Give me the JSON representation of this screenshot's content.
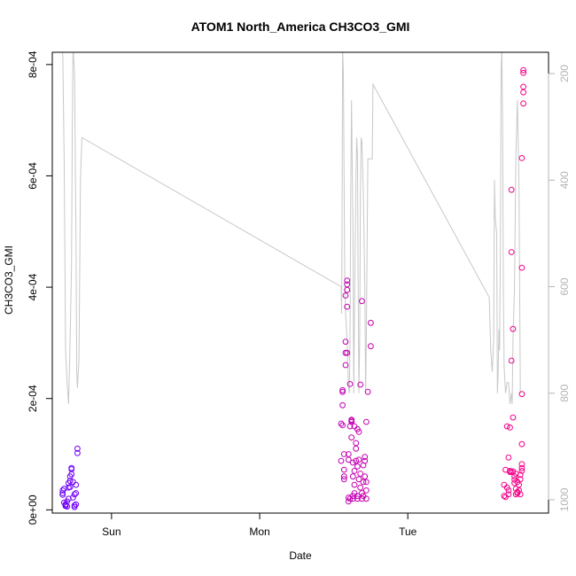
{
  "chart_data": {
    "type": "scatter",
    "title": "ATOM1 North_America CH3CO3_GMI",
    "xlabel": "Date",
    "ylabel": "CH3CO3_GMI",
    "x_unit": "days from Sun 00:00",
    "xlim": [
      -0.4,
      2.95
    ],
    "ylim": [
      -5.8e-06,
      0.000822
    ],
    "x_ticks": [
      {
        "value": 0,
        "label": "Sun"
      },
      {
        "value": 1,
        "label": "Mon"
      },
      {
        "value": 2,
        "label": "Tue"
      }
    ],
    "y_ticks": [
      {
        "value": 0,
        "label": "0e+00"
      },
      {
        "value": 0.0002,
        "label": "2e-04"
      },
      {
        "value": 0.0004,
        "label": "4e-04"
      },
      {
        "value": 0.0006,
        "label": "6e-04"
      },
      {
        "value": 0.0008,
        "label": "8e-04"
      }
    ],
    "y2_axis": {
      "label": "",
      "reversed": true,
      "lim": [
        1025,
        160
      ],
      "ticks": [
        {
          "value": 200,
          "label": "200"
        },
        {
          "value": 400,
          "label": "400"
        },
        {
          "value": 600,
          "label": "600"
        },
        {
          "value": 800,
          "label": "800"
        },
        {
          "value": 1000,
          "label": "1000"
        }
      ]
    },
    "grid": false,
    "legend": "none",
    "series": [
      {
        "kind": "points",
        "color_start": "#6a00ff",
        "color_end": "#ff0080",
        "points": [
          [
            -0.33,
            3e-05
          ],
          [
            -0.33,
            3.5e-05
          ],
          [
            -0.33,
            2.7e-05
          ],
          [
            -0.32,
            3.8e-05
          ],
          [
            -0.32,
            1.3e-05
          ],
          [
            -0.31,
            1e-05
          ],
          [
            -0.31,
            8e-06
          ],
          [
            -0.3,
            6e-06
          ],
          [
            -0.3,
            1.5e-05
          ],
          [
            -0.29,
            4.8e-05
          ],
          [
            -0.29,
            4e-05
          ],
          [
            -0.28,
            5.2e-05
          ],
          [
            -0.28,
            4.1e-05
          ],
          [
            -0.28,
            6e-05
          ],
          [
            -0.27,
            7.3e-05
          ],
          [
            -0.27,
            7.5e-05
          ],
          [
            -0.27,
            6.4e-05
          ],
          [
            -0.26,
            5e-05
          ],
          [
            -0.26,
            2.2e-05
          ],
          [
            -0.25,
            5e-06
          ],
          [
            -0.25,
            8e-06
          ],
          [
            -0.25,
            2.8e-05
          ],
          [
            -0.24,
            1e-05
          ],
          [
            -0.24,
            4.5e-05
          ],
          [
            -0.23,
            0.000102
          ],
          [
            -0.23,
            0.00011
          ],
          [
            -0.24,
            3e-05
          ],
          [
            -0.29,
            2e-05
          ],
          [
            -0.31,
            7e-06
          ],
          [
            1.55,
            8.8e-05
          ],
          [
            1.55,
            0.000155
          ],
          [
            1.56,
            0.000152
          ],
          [
            1.56,
            0.000188
          ],
          [
            1.56,
            0.000212
          ],
          [
            1.56,
            0.000215
          ],
          [
            1.57,
            7.2e-05
          ],
          [
            1.57,
            6e-05
          ],
          [
            1.57,
            5.5e-05
          ],
          [
            1.57,
            0.0001
          ],
          [
            1.58,
            0.00026
          ],
          [
            1.58,
            0.000302
          ],
          [
            1.58,
            0.000282
          ],
          [
            1.58,
            0.000385
          ],
          [
            1.59,
            0.000395
          ],
          [
            1.59,
            0.000405
          ],
          [
            1.59,
            0.000412
          ],
          [
            1.59,
            0.000365
          ],
          [
            1.59,
            0.000282
          ],
          [
            1.6,
            1.5e-05
          ],
          [
            1.6,
            2.2e-05
          ],
          [
            1.6,
            9e-05
          ],
          [
            1.61,
            2e-05
          ],
          [
            1.61,
            0.000226
          ],
          [
            1.61,
            0.00015
          ],
          [
            1.62,
            0.00013
          ],
          [
            1.62,
            0.000162
          ],
          [
            1.62,
            0.000158
          ],
          [
            1.62,
            0.00016
          ],
          [
            1.63,
            8.5e-05
          ],
          [
            1.63,
            6e-05
          ],
          [
            1.63,
            2.5e-05
          ],
          [
            1.63,
            2e-05
          ],
          [
            1.64,
            3e-05
          ],
          [
            1.64,
            7e-05
          ],
          [
            1.64,
            0.00015
          ],
          [
            1.65,
            0.00012
          ],
          [
            1.65,
            8.8e-05
          ],
          [
            1.65,
            0.00011
          ],
          [
            1.66,
            2.5e-05
          ],
          [
            1.66,
            2e-05
          ],
          [
            1.66,
            7.8e-05
          ],
          [
            1.67,
            9e-05
          ],
          [
            1.67,
            0.00014
          ],
          [
            1.67,
            5.5e-05
          ],
          [
            1.68,
            6.5e-05
          ],
          [
            1.68,
            4e-05
          ],
          [
            1.68,
            0.000225
          ],
          [
            1.69,
            0.000375
          ],
          [
            1.69,
            2e-05
          ],
          [
            1.69,
            3e-05
          ],
          [
            1.7,
            8e-05
          ],
          [
            1.7,
            5e-05
          ],
          [
            1.7,
            2.5e-05
          ],
          [
            1.71,
            8.8e-05
          ],
          [
            1.71,
            9.5e-05
          ],
          [
            1.71,
            6e-05
          ],
          [
            1.72,
            5e-05
          ],
          [
            1.72,
            2e-05
          ],
          [
            1.72,
            0.000158
          ],
          [
            1.73,
            0.000212
          ],
          [
            1.72,
            3.5e-05
          ],
          [
            1.6,
            0.0001
          ],
          [
            1.64,
            4.5e-05
          ],
          [
            1.66,
            0.000145
          ],
          [
            1.75,
            0.000336
          ],
          [
            1.75,
            0.000294
          ],
          [
            2.65,
            2.5e-05
          ],
          [
            2.65,
            4.5e-05
          ],
          [
            2.66,
            2.3e-05
          ],
          [
            2.66,
            7.2e-05
          ],
          [
            2.67,
            0.00015
          ],
          [
            2.67,
            4e-05
          ],
          [
            2.68,
            9.4e-05
          ],
          [
            2.68,
            2.8e-05
          ],
          [
            2.68,
            3.5e-05
          ],
          [
            2.69,
            7e-05
          ],
          [
            2.69,
            0.000148
          ],
          [
            2.69,
            6.8e-05
          ],
          [
            2.7,
            0.000463
          ],
          [
            2.7,
            0.000575
          ],
          [
            2.7,
            0.000268
          ],
          [
            2.71,
            6.9e-05
          ],
          [
            2.71,
            0.000325
          ],
          [
            2.71,
            0.000166
          ],
          [
            2.72,
            6e-05
          ],
          [
            2.72,
            5.4e-05
          ],
          [
            2.72,
            4.8e-05
          ],
          [
            2.73,
            6.5e-05
          ],
          [
            2.73,
            3.8e-05
          ],
          [
            2.73,
            2.8e-05
          ],
          [
            2.74,
            3.2e-05
          ],
          [
            2.74,
            3e-05
          ],
          [
            2.75,
            3.5e-05
          ],
          [
            2.75,
            4.5e-05
          ],
          [
            2.76,
            5.5e-05
          ],
          [
            2.76,
            6.3e-05
          ],
          [
            2.77,
            7e-05
          ],
          [
            2.77,
            7.5e-05
          ],
          [
            2.77,
            8.2e-05
          ],
          [
            2.77,
            0.000118
          ],
          [
            2.77,
            0.000208
          ],
          [
            2.77,
            0.000435
          ],
          [
            2.77,
            0.000632
          ],
          [
            2.78,
            0.00073
          ],
          [
            2.78,
            0.00075
          ],
          [
            2.78,
            0.00076
          ],
          [
            2.78,
            0.000785
          ],
          [
            2.78,
            0.00079
          ],
          [
            2.76,
            2.8e-05
          ],
          [
            2.74,
            5e-05
          ],
          [
            2.7,
            6.8e-05
          ]
        ]
      },
      {
        "kind": "line",
        "axis": "right",
        "color": "#c8c8c8",
        "points": [
          [
            -0.33,
            150
          ],
          [
            -0.32,
            360
          ],
          [
            -0.31,
            720
          ],
          [
            -0.3,
            780
          ],
          [
            -0.29,
            820
          ],
          [
            -0.28,
            700
          ],
          [
            -0.27,
            560
          ],
          [
            -0.265,
            300
          ],
          [
            -0.26,
            150
          ],
          [
            -0.25,
            200
          ],
          [
            -0.24,
            500
          ],
          [
            -0.235,
            760
          ],
          [
            -0.23,
            790
          ],
          [
            -0.225,
            760
          ],
          [
            -0.22,
            740
          ],
          [
            -0.21,
            400
          ],
          [
            -0.2,
            320
          ],
          [
            1.55,
            600
          ],
          [
            1.553,
            650
          ],
          [
            1.556,
            500
          ],
          [
            1.56,
            150
          ],
          [
            1.565,
            200
          ],
          [
            1.57,
            400
          ],
          [
            1.575,
            600
          ],
          [
            1.58,
            650
          ],
          [
            1.59,
            700
          ],
          [
            1.6,
            790
          ],
          [
            1.605,
            800
          ],
          [
            1.61,
            700
          ],
          [
            1.615,
            420
          ],
          [
            1.62,
            250
          ],
          [
            1.63,
            500
          ],
          [
            1.635,
            800
          ],
          [
            1.64,
            650
          ],
          [
            1.65,
            400
          ],
          [
            1.655,
            320
          ],
          [
            1.66,
            350
          ],
          [
            1.665,
            600
          ],
          [
            1.67,
            800
          ],
          [
            1.675,
            700
          ],
          [
            1.68,
            430
          ],
          [
            1.685,
            320
          ],
          [
            1.69,
            330
          ],
          [
            1.7,
            420
          ],
          [
            1.71,
            600
          ],
          [
            1.715,
            800
          ],
          [
            1.72,
            700
          ],
          [
            1.73,
            360
          ],
          [
            1.735,
            360
          ],
          [
            1.74,
            360
          ],
          [
            1.75,
            360
          ],
          [
            1.76,
            360
          ],
          [
            1.765,
            220
          ],
          [
            2.55,
            620
          ],
          [
            2.56,
            720
          ],
          [
            2.57,
            760
          ],
          [
            2.58,
            700
          ],
          [
            2.585,
            400
          ],
          [
            2.59,
            470
          ],
          [
            2.6,
            500
          ],
          [
            2.605,
            800
          ],
          [
            2.61,
            760
          ],
          [
            2.615,
            680
          ],
          [
            2.62,
            720
          ],
          [
            2.625,
            520
          ],
          [
            2.63,
            200
          ],
          [
            2.635,
            150
          ],
          [
            2.64,
            300
          ],
          [
            2.645,
            600
          ],
          [
            2.65,
            750
          ],
          [
            2.66,
            800
          ],
          [
            2.67,
            780
          ],
          [
            2.68,
            780
          ],
          [
            2.69,
            820
          ],
          [
            2.7,
            800
          ],
          [
            2.705,
            820
          ],
          [
            2.71,
            700
          ],
          [
            2.72,
            600
          ],
          [
            2.73,
            350
          ],
          [
            2.74,
            250
          ],
          [
            2.75,
            400
          ],
          [
            2.76,
            800
          ]
        ]
      }
    ]
  }
}
